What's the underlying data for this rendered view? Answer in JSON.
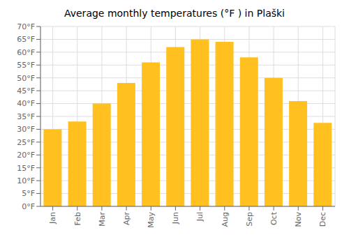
{
  "chart_data": {
    "type": "bar",
    "title": "Average monthly temperatures (°F ) in Plaški",
    "categories": [
      "Jan",
      "Feb",
      "Mar",
      "Apr",
      "May",
      "Jun",
      "Jul",
      "Aug",
      "Sep",
      "Oct",
      "Nov",
      "Dec"
    ],
    "values": [
      30,
      33,
      40,
      48,
      56,
      62,
      65,
      64,
      58,
      50,
      41,
      32.5
    ],
    "color": "#FFC020",
    "ylim": [
      0,
      70
    ],
    "yticks": [
      {
        "value": 0,
        "label": "0°F"
      },
      {
        "value": 5,
        "label": "5°F"
      },
      {
        "value": 10,
        "label": "10°F"
      },
      {
        "value": 15,
        "label": "15°F"
      },
      {
        "value": 20,
        "label": "20°F"
      },
      {
        "value": 25,
        "label": "25°F"
      },
      {
        "value": 30,
        "label": "30°F"
      },
      {
        "value": 35,
        "label": "35°F"
      },
      {
        "value": 40,
        "label": "40°F"
      },
      {
        "value": 45,
        "label": "45°F"
      },
      {
        "value": 50,
        "label": "50°F"
      },
      {
        "value": 55,
        "label": "55°F"
      },
      {
        "value": 60,
        "label": "60°F"
      },
      {
        "value": 65,
        "label": "65°F"
      },
      {
        "value": 70,
        "label": "70°F"
      }
    ],
    "grid": true
  }
}
